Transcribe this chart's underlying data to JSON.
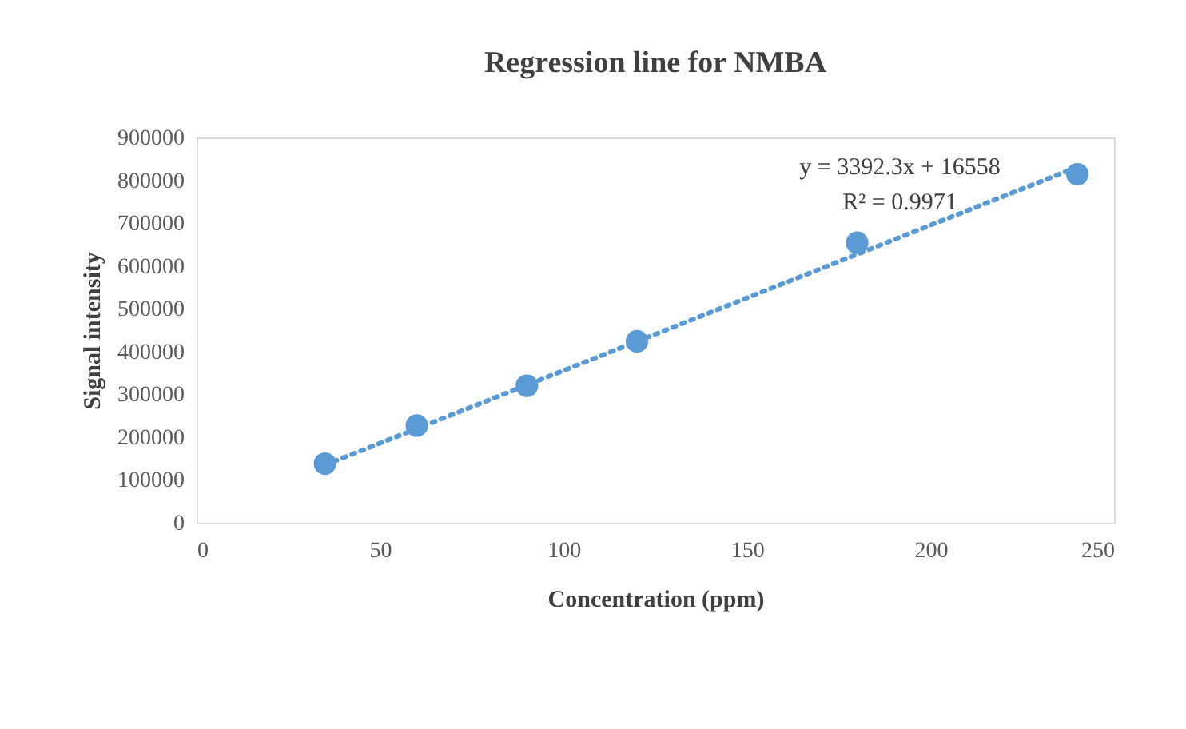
{
  "chart_data": {
    "type": "scatter",
    "title": "Regression line for NMBA",
    "xlabel": "Concentration (ppm)",
    "ylabel": "Signal intensity",
    "series": [
      {
        "color": "#5b9bd5",
        "x": [
          35,
          60,
          90,
          120,
          180,
          240
        ],
        "values": [
          138000,
          227000,
          320000,
          424000,
          654000,
          814000
        ],
        "marker": "circle"
      },
      {
        "type": "line",
        "color": "#5b9bd5",
        "x": [
          35,
          240
        ],
        "values": [
          135000,
          831000
        ],
        "line_style": "dotted",
        "marker": "none"
      }
    ],
    "xlim": [
      0,
      250
    ],
    "xticks": [
      0,
      50,
      100,
      150,
      200,
      250
    ],
    "ylim": [
      0,
      900000
    ],
    "yticks": [
      0,
      100000,
      200000,
      300000,
      400000,
      500000,
      600000,
      700000,
      800000,
      900000
    ],
    "grid": false,
    "annotations": [
      "y = 3392.3x + 16558",
      "R² = 0.9971"
    ]
  }
}
